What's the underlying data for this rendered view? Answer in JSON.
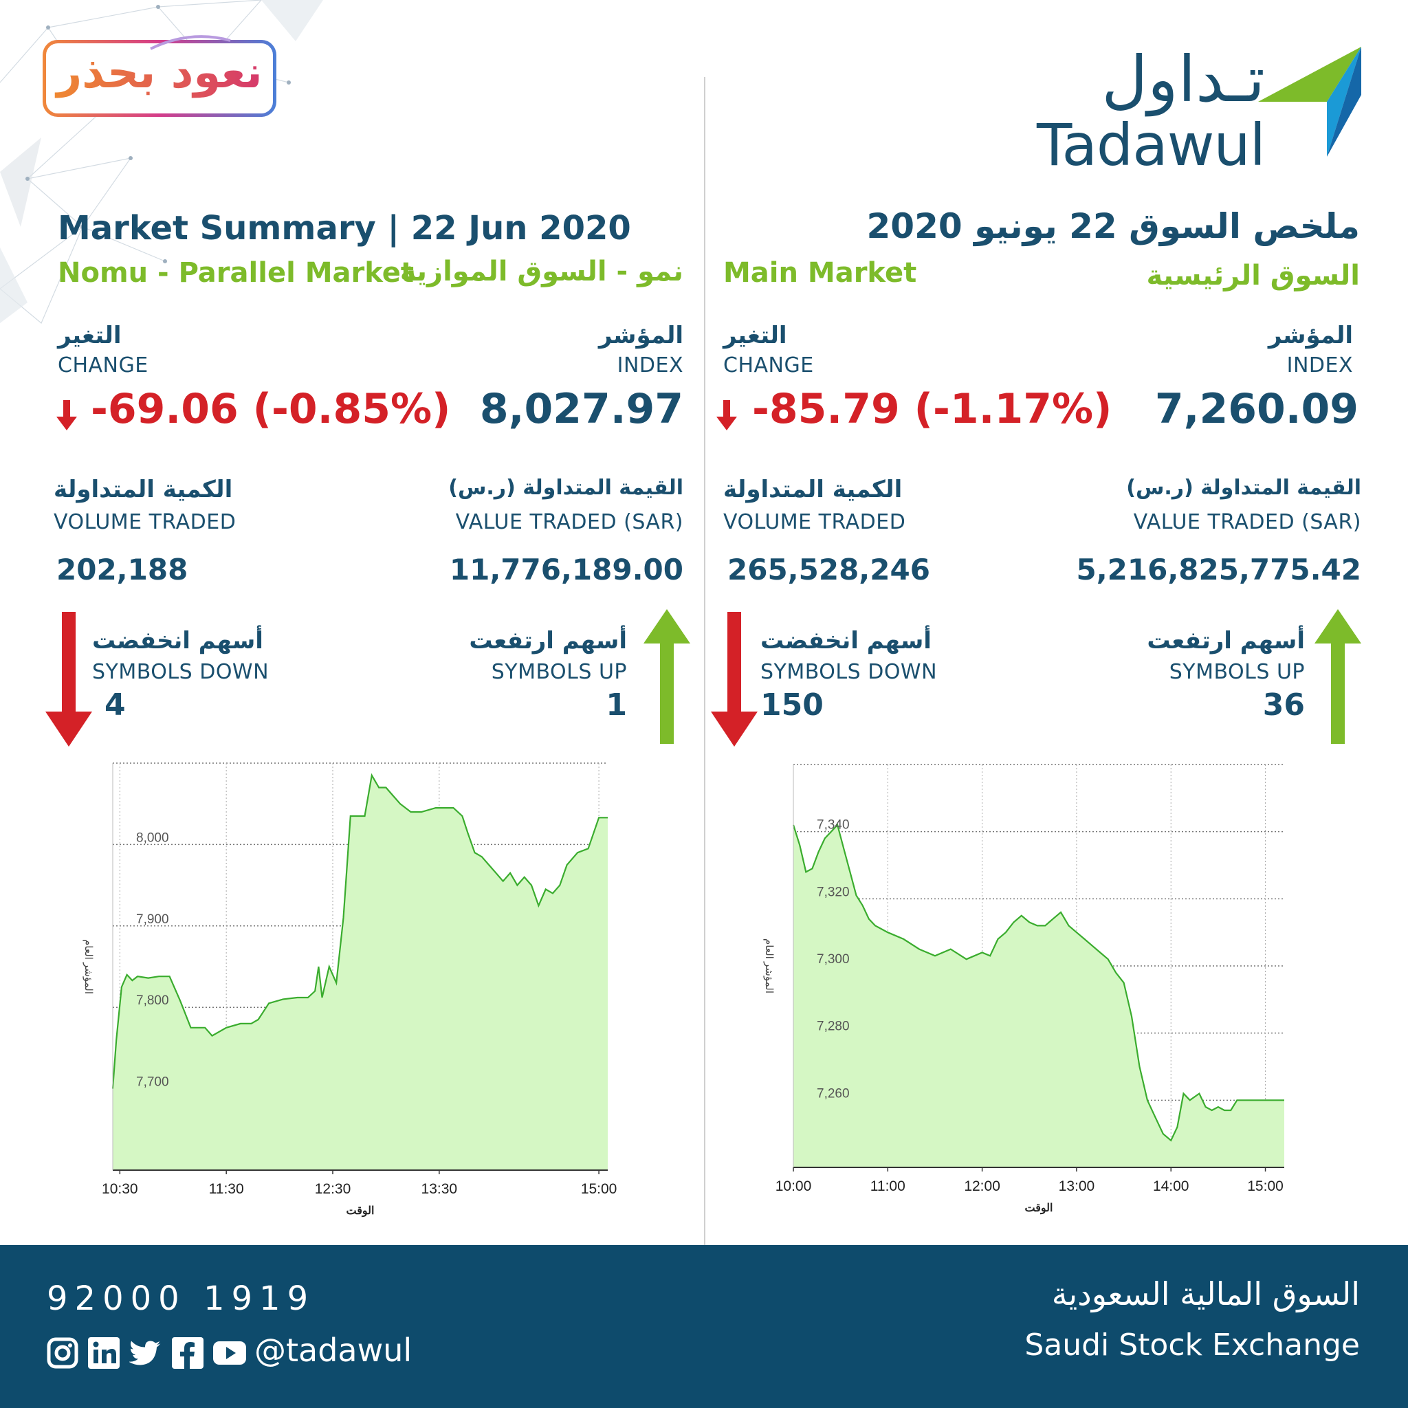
{
  "colors": {
    "navy": "#1a4f6e",
    "green": "#7dbb2a",
    "red": "#d42127",
    "footer": "#0e4b6c",
    "chart_line": "#3aac2e",
    "chart_fill": "#d5f7c4"
  },
  "badge": {
    "text": "نعود بحذر"
  },
  "logo": {
    "arabic": "تـداول",
    "latin": "Tadawul"
  },
  "header": {
    "title_en": "Market Summary | 22  Jun 2020",
    "title_ar": "ملخص السوق 22 يونيو 2020"
  },
  "nomu": {
    "name_en": "Nomu - Parallel Market",
    "name_ar": "نمو - السوق الموازية",
    "change_label_ar": "التغير",
    "change_label_en": "CHANGE",
    "index_label_ar": "المؤشر",
    "index_label_en": "INDEX",
    "change": "-69.06 (-0.85%)",
    "index": "8,027.97",
    "volume_label_ar": "الكمية المتداولة",
    "volume_label_en": "VOLUME TRADED",
    "value_label_ar": "القيمة المتداولة (ر.س)",
    "value_label_en": "VALUE TRADED (SAR)",
    "volume": "202,188",
    "value": "11,776,189.00",
    "down_label_ar": "أسهم انخفضت",
    "down_label_en": "SYMBOLS DOWN",
    "down": "4",
    "up_label_ar": "أسهم ارتفعت",
    "up_label_en": "SYMBOLS UP",
    "up": "1"
  },
  "main": {
    "name_en": "Main Market",
    "name_ar": "السوق الرئيسية",
    "change_label_ar": "التغير",
    "change_label_en": "CHANGE",
    "index_label_ar": "المؤشر",
    "index_label_en": "INDEX",
    "change": "-85.79 (-1.17%)",
    "index": "7,260.09",
    "volume_label_ar": "الكمية المتداولة",
    "volume_label_en": "VOLUME TRADED",
    "value_label_ar": "القيمة المتداولة (ر.س)",
    "value_label_en": "VALUE TRADED (SAR)",
    "volume": "265,528,246",
    "value": "5,216,825,775.42",
    "down_label_ar": "أسهم انخفضت",
    "down_label_en": "SYMBOLS DOWN",
    "down": "150",
    "up_label_ar": "أسهم ارتفعت",
    "up_label_en": "SYMBOLS UP",
    "up": "36"
  },
  "footer": {
    "phone": "92000 1919",
    "handle": "@tadawul",
    "exchange_ar": "السوق المالية السعودية",
    "exchange_en": "Saudi Stock Exchange",
    "social_icons": [
      "instagram-icon",
      "linkedin-icon",
      "twitter-icon",
      "facebook-icon",
      "youtube-icon"
    ]
  },
  "chart_data": [
    {
      "type": "area",
      "market": "Nomu",
      "xlabel": "الوقت",
      "ylabel": "المؤشر العام",
      "xlim": [
        "10:26",
        "15:05"
      ],
      "ylim": [
        7600,
        8100
      ],
      "yticks": [
        7700,
        7800,
        7900,
        8000
      ],
      "ytick_labels": [
        "7,700",
        "7,800",
        "7,900",
        "8,000"
      ],
      "xticks": [
        "10:30",
        "11:30",
        "12:30",
        "13:30",
        "15:00"
      ],
      "grid": true,
      "x": [
        "10:26",
        "10:28",
        "10:31",
        "10:34",
        "10:37",
        "10:40",
        "10:46",
        "10:52",
        "10:58",
        "11:04",
        "11:10",
        "11:14",
        "11:18",
        "11:22",
        "11:30",
        "11:38",
        "11:44",
        "11:48",
        "11:54",
        "12:02",
        "12:10",
        "12:16",
        "12:20",
        "12:22",
        "12:24",
        "12:28",
        "12:32",
        "12:36",
        "12:40",
        "12:44",
        "12:48",
        "12:52",
        "12:56",
        "13:00",
        "13:04",
        "13:08",
        "13:14",
        "13:20",
        "13:28",
        "13:34",
        "13:38",
        "13:43",
        "13:46",
        "13:50",
        "13:54",
        "13:58",
        "14:02",
        "14:06",
        "14:10",
        "14:14",
        "14:18",
        "14:22",
        "14:26",
        "14:30",
        "14:34",
        "14:38",
        "14:42",
        "14:48",
        "14:54",
        "15:00",
        "15:05"
      ],
      "y": [
        7700,
        7760,
        7825,
        7840,
        7833,
        7838,
        7836,
        7838,
        7838,
        7808,
        7775,
        7775,
        7775,
        7765,
        7775,
        7780,
        7780,
        7785,
        7805,
        7810,
        7812,
        7812,
        7820,
        7850,
        7812,
        7850,
        7830,
        7910,
        8035,
        8035,
        8035,
        8085,
        8070,
        8070,
        8060,
        8050,
        8040,
        8040,
        8045,
        8045,
        8045,
        8035,
        8015,
        7990,
        7985,
        7975,
        7965,
        7955,
        7965,
        7950,
        7960,
        7950,
        7925,
        7945,
        7940,
        7950,
        7975,
        7990,
        7995,
        8033,
        8033
      ]
    },
    {
      "type": "area",
      "market": "Main",
      "xlabel": "الوقت",
      "ylabel": "المؤشر العام",
      "xlim": [
        "10:00",
        "15:12"
      ],
      "ylim": [
        7240,
        7360
      ],
      "yticks": [
        7260,
        7280,
        7300,
        7320,
        7340
      ],
      "ytick_labels": [
        "7,260",
        "7,280",
        "7,300",
        "7,320",
        "7,340"
      ],
      "xticks": [
        "10:00",
        "11:00",
        "12:00",
        "13:00",
        "14:00",
        "15:00"
      ],
      "grid": true,
      "x": [
        "10:00",
        "10:04",
        "10:08",
        "10:12",
        "10:16",
        "10:20",
        "10:24",
        "10:28",
        "10:32",
        "10:36",
        "10:40",
        "10:44",
        "10:48",
        "10:52",
        "11:00",
        "11:10",
        "11:20",
        "11:30",
        "11:40",
        "11:50",
        "12:00",
        "12:05",
        "12:10",
        "12:15",
        "12:20",
        "12:25",
        "12:30",
        "12:35",
        "12:40",
        "12:45",
        "12:50",
        "12:55",
        "13:00",
        "13:05",
        "13:10",
        "13:15",
        "13:20",
        "13:25",
        "13:30",
        "13:35",
        "13:40",
        "13:45",
        "13:50",
        "13:55",
        "14:00",
        "14:04",
        "14:08",
        "14:12",
        "14:15",
        "14:18",
        "14:22",
        "14:26",
        "14:30",
        "14:34",
        "14:38",
        "14:42",
        "14:46",
        "14:50",
        "14:54",
        "14:58",
        "15:02",
        "15:12"
      ],
      "y": [
        7342,
        7336,
        7328,
        7329,
        7334,
        7338,
        7340,
        7342,
        7335,
        7328,
        7321,
        7318,
        7314,
        7312,
        7310,
        7308,
        7305,
        7303,
        7305,
        7302,
        7304,
        7303,
        7308,
        7310,
        7313,
        7315,
        7313,
        7312,
        7312,
        7314,
        7316,
        7312,
        7310,
        7308,
        7306,
        7304,
        7302,
        7298,
        7295,
        7285,
        7270,
        7260,
        7255,
        7250,
        7248,
        7252,
        7262,
        7260,
        7261,
        7262,
        7258,
        7257,
        7258,
        7257,
        7257,
        7260,
        7260,
        7260,
        7260,
        7260,
        7260,
        7260
      ]
    }
  ]
}
